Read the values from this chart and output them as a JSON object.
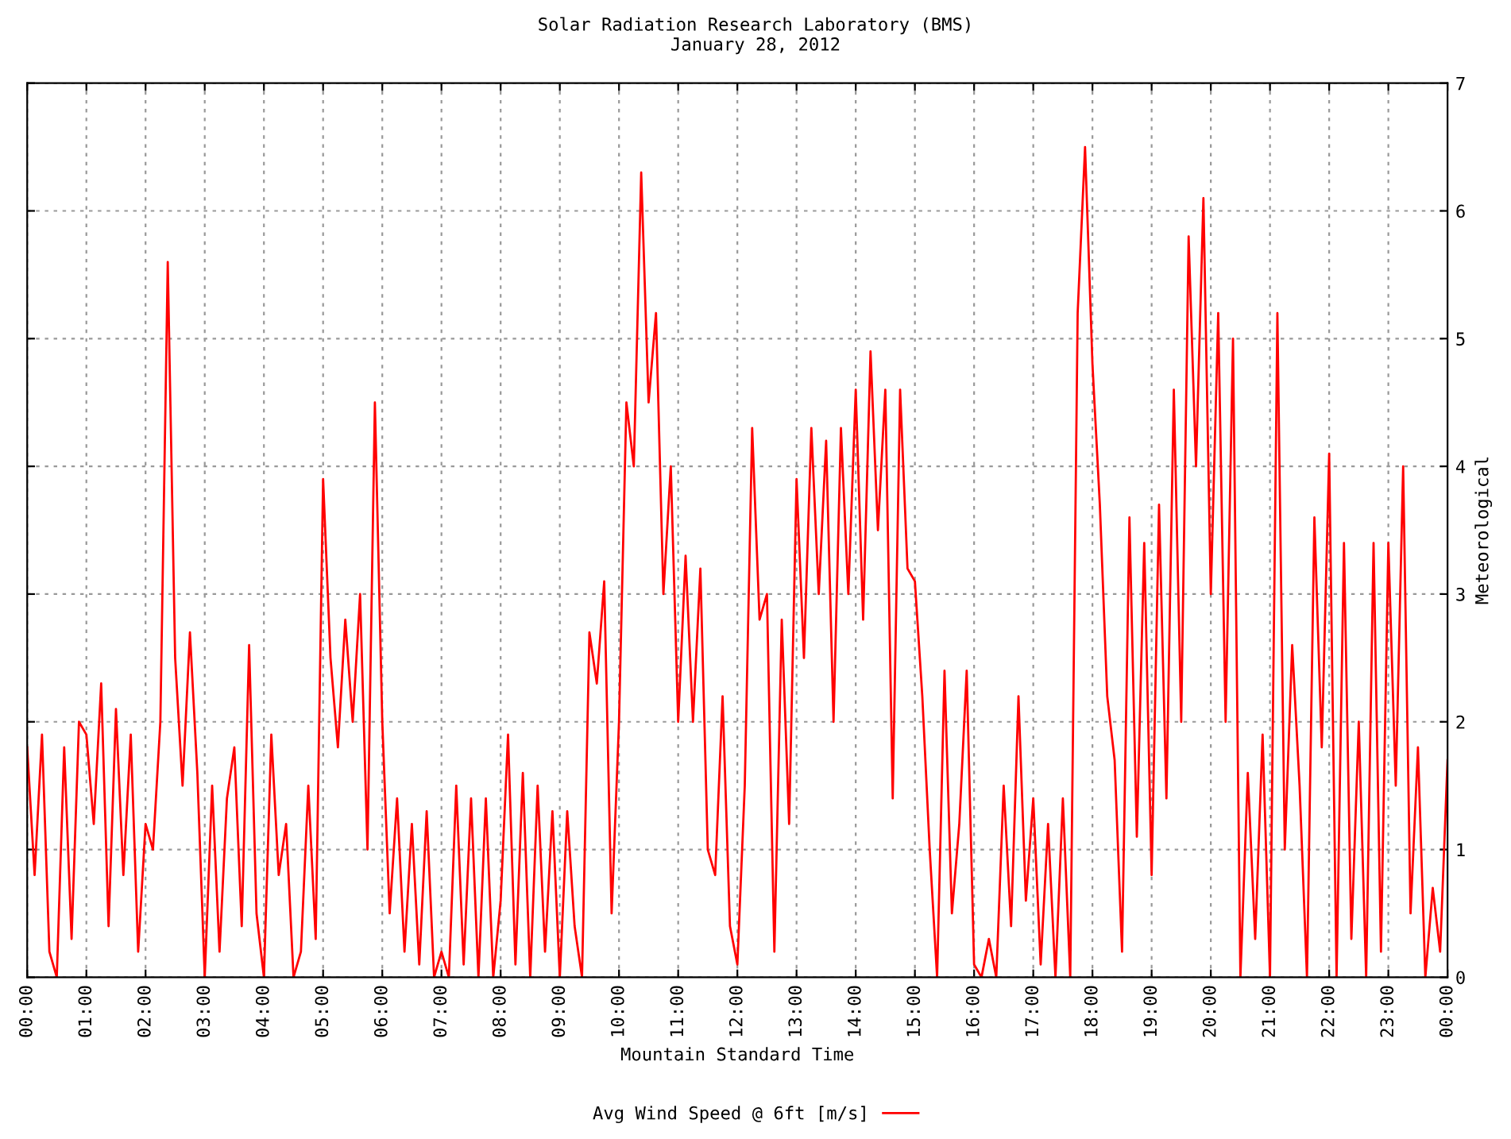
{
  "chart_data": {
    "type": "line",
    "title": "Solar Radiation Research Laboratory (BMS)",
    "subtitle": "January 28, 2012",
    "xlabel": "Mountain Standard Time",
    "ylabel": "Meteorological",
    "x": [
      0,
      0.125,
      0.25,
      0.375,
      0.5,
      0.625,
      0.75,
      0.875,
      1,
      1.125,
      1.25,
      1.375,
      1.5,
      1.625,
      1.75,
      1.875,
      2,
      2.125,
      2.25,
      2.375,
      2.5,
      2.625,
      2.75,
      2.875,
      3,
      3.125,
      3.25,
      3.375,
      3.5,
      3.625,
      3.75,
      3.875,
      4,
      4.125,
      4.25,
      4.375,
      4.5,
      4.625,
      4.75,
      4.875,
      5,
      5.125,
      5.25,
      5.375,
      5.5,
      5.625,
      5.75,
      5.875,
      6,
      6.125,
      6.25,
      6.375,
      6.5,
      6.625,
      6.75,
      6.875,
      7,
      7.125,
      7.25,
      7.375,
      7.5,
      7.625,
      7.75,
      7.875,
      8,
      8.125,
      8.25,
      8.375,
      8.5,
      8.625,
      8.75,
      8.875,
      9,
      9.125,
      9.25,
      9.375,
      9.5,
      9.625,
      9.75,
      9.875,
      10,
      10.125,
      10.25,
      10.375,
      10.5,
      10.625,
      10.75,
      10.875,
      11,
      11.125,
      11.25,
      11.375,
      11.5,
      11.625,
      11.75,
      11.875,
      12,
      12.125,
      12.25,
      12.375,
      12.5,
      12.625,
      12.75,
      12.875,
      13,
      13.125,
      13.25,
      13.375,
      13.5,
      13.625,
      13.75,
      13.875,
      14,
      14.125,
      14.25,
      14.375,
      14.5,
      14.625,
      14.75,
      14.875,
      15,
      15.125,
      15.25,
      15.375,
      15.5,
      15.625,
      15.75,
      15.875,
      16,
      16.125,
      16.25,
      16.375,
      16.5,
      16.625,
      16.75,
      16.875,
      17,
      17.125,
      17.25,
      17.375,
      17.5,
      17.625,
      17.75,
      17.875,
      18,
      18.125,
      18.25,
      18.375,
      18.5,
      18.625,
      18.75,
      18.875,
      19,
      19.125,
      19.25,
      19.375,
      19.5,
      19.625,
      19.75,
      19.875,
      20,
      20.125,
      20.25,
      20.375,
      20.5,
      20.625,
      20.75,
      20.875,
      21,
      21.125,
      21.25,
      21.375,
      21.5,
      21.625,
      21.75,
      21.875,
      22,
      22.125,
      22.25,
      22.375,
      22.5,
      22.625,
      22.75,
      22.875,
      23,
      23.125,
      23.25,
      23.375,
      23.5,
      23.625,
      23.75,
      23.875,
      24
    ],
    "series": [
      {
        "name": "Avg Wind Speed @ 6ft [m/s]",
        "color": "#ff0000",
        "values": [
          1.8,
          0.8,
          1.9,
          0.2,
          0,
          1.8,
          0.3,
          2.0,
          1.9,
          1.2,
          2.3,
          0.4,
          2.1,
          0.8,
          1.9,
          0.2,
          1.2,
          1.0,
          2.0,
          5.6,
          2.5,
          1.5,
          2.7,
          1.6,
          0,
          1.5,
          0.2,
          1.4,
          1.8,
          0.4,
          2.6,
          0.5,
          0,
          1.9,
          0.8,
          1.2,
          0,
          0.2,
          1.5,
          0.3,
          3.9,
          2.5,
          1.8,
          2.8,
          2.0,
          3.0,
          1.0,
          4.5,
          2.0,
          0.5,
          1.4,
          0.2,
          1.2,
          0.1,
          1.3,
          0,
          0.2,
          0,
          1.5,
          0.1,
          1.4,
          0,
          1.4,
          0,
          0.6,
          1.9,
          0.1,
          1.6,
          0,
          1.5,
          0.2,
          1.3,
          0,
          1.3,
          0.4,
          0,
          2.7,
          2.3,
          3.1,
          0.5,
          2.0,
          4.5,
          4.0,
          6.3,
          4.5,
          5.2,
          3.0,
          4.0,
          2.0,
          3.3,
          2.0,
          3.2,
          1.0,
          0.8,
          2.2,
          0.4,
          0.1,
          1.5,
          4.3,
          2.8,
          3.0,
          0.2,
          2.8,
          1.2,
          3.9,
          2.5,
          4.3,
          3.0,
          4.2,
          2.0,
          4.3,
          3.0,
          4.6,
          2.8,
          4.9,
          3.5,
          4.6,
          1.4,
          4.6,
          3.2,
          3.1,
          2.2,
          1.0,
          0,
          2.4,
          0.5,
          1.2,
          2.4,
          0.1,
          0,
          0.3,
          0,
          1.5,
          0.4,
          2.2,
          0.6,
          1.4,
          0.1,
          1.2,
          0,
          1.4,
          0,
          5.2,
          6.5,
          4.8,
          3.7,
          2.2,
          1.7,
          0.2,
          3.6,
          1.1,
          3.4,
          0.8,
          3.7,
          1.4,
          4.6,
          2.0,
          5.8,
          4.0,
          6.1,
          3.0,
          5.2,
          2.0,
          5.0,
          0,
          1.6,
          0.3,
          1.9,
          0,
          5.2,
          1.0,
          2.6,
          1.5,
          0,
          3.6,
          1.8,
          4.1,
          0,
          3.4,
          0.3,
          2.0,
          0,
          3.4,
          0.2,
          3.4,
          1.5,
          4.0,
          0.5,
          1.8,
          0,
          0.7,
          0.2,
          1.7
        ]
      }
    ],
    "xlim": [
      0,
      24
    ],
    "xticks": [
      {
        "value": 0,
        "label": "00:00"
      },
      {
        "value": 1,
        "label": "01:00"
      },
      {
        "value": 2,
        "label": "02:00"
      },
      {
        "value": 3,
        "label": "03:00"
      },
      {
        "value": 4,
        "label": "04:00"
      },
      {
        "value": 5,
        "label": "05:00"
      },
      {
        "value": 6,
        "label": "06:00"
      },
      {
        "value": 7,
        "label": "07:00"
      },
      {
        "value": 8,
        "label": "08:00"
      },
      {
        "value": 9,
        "label": "09:00"
      },
      {
        "value": 10,
        "label": "10:00"
      },
      {
        "value": 11,
        "label": "11:00"
      },
      {
        "value": 12,
        "label": "12:00"
      },
      {
        "value": 13,
        "label": "13:00"
      },
      {
        "value": 14,
        "label": "14:00"
      },
      {
        "value": 15,
        "label": "15:00"
      },
      {
        "value": 16,
        "label": "16:00"
      },
      {
        "value": 17,
        "label": "17:00"
      },
      {
        "value": 18,
        "label": "18:00"
      },
      {
        "value": 19,
        "label": "19:00"
      },
      {
        "value": 20,
        "label": "20:00"
      },
      {
        "value": 21,
        "label": "21:00"
      },
      {
        "value": 22,
        "label": "22:00"
      },
      {
        "value": 23,
        "label": "23:00"
      },
      {
        "value": 24,
        "label": "00:00"
      }
    ],
    "ylim": [
      0,
      7
    ],
    "yticks": [
      0,
      1,
      2,
      3,
      4,
      5,
      6,
      7
    ],
    "grid": true,
    "legend": "bottom",
    "line_style": "solid",
    "marker": "none"
  }
}
